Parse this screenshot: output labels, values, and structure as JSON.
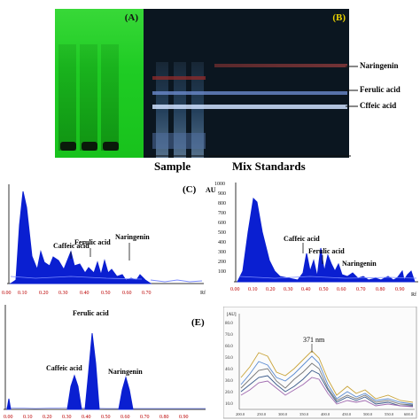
{
  "panel_a": {
    "label": "(A)"
  },
  "panel_b": {
    "label": "(B)",
    "bands": [
      "Naringenin",
      "Ferulic acid",
      "Cffeic acid"
    ],
    "group_labels": [
      "Sample",
      "Mix Standards"
    ]
  },
  "panel_c": {
    "label": "(C)",
    "ticks": [
      "0.00",
      "0.10",
      "0.20",
      "0.30",
      "0.40",
      "0.50",
      "0.60",
      "0.70",
      "Rf"
    ],
    "peak_labels": [
      "Caffeic acid",
      "Ferulic acid",
      "Naringenin"
    ]
  },
  "panel_d": {
    "y_unit": "AU",
    "y_ticks": [
      "1000",
      "900",
      "800",
      "700",
      "600",
      "500",
      "400",
      "300",
      "200",
      "100"
    ],
    "x_ticks": [
      "0.00",
      "0.10",
      "0.20",
      "0.30",
      "0.40",
      "0.50",
      "0.60",
      "0.70",
      "0.80",
      "0.90",
      "Rf"
    ],
    "peak_labels": [
      "Caffeic acid",
      "Ferulic acid",
      "Naringenin"
    ]
  },
  "panel_e": {
    "label": "(E)",
    "ticks": [
      "0.00",
      "0.10",
      "0.20",
      "0.30",
      "0.40",
      "0.50",
      "0.60",
      "0.70",
      "0.80",
      "0.90"
    ],
    "peak_labels": [
      "Ferulic acid",
      "Caffeic acid",
      "Naringenin"
    ]
  },
  "panel_f": {
    "annotation": "371 nm",
    "y_unit": "[AU]",
    "y_ticks": [
      "80.0",
      "70.0",
      "60.0",
      "50.0",
      "40.0",
      "30.0",
      "20.0",
      "10.0"
    ],
    "x_ticks": [
      "200.0",
      "250.0",
      "300.0",
      "350.0",
      "400.0",
      "450.0",
      "500.0",
      "550.0",
      "600.0"
    ]
  },
  "colors": {
    "peak_fill": "#0a1fd1",
    "label_yellow": "#e8d000",
    "plate_green": "#22c82a",
    "plate_dark": "#0b1620"
  }
}
